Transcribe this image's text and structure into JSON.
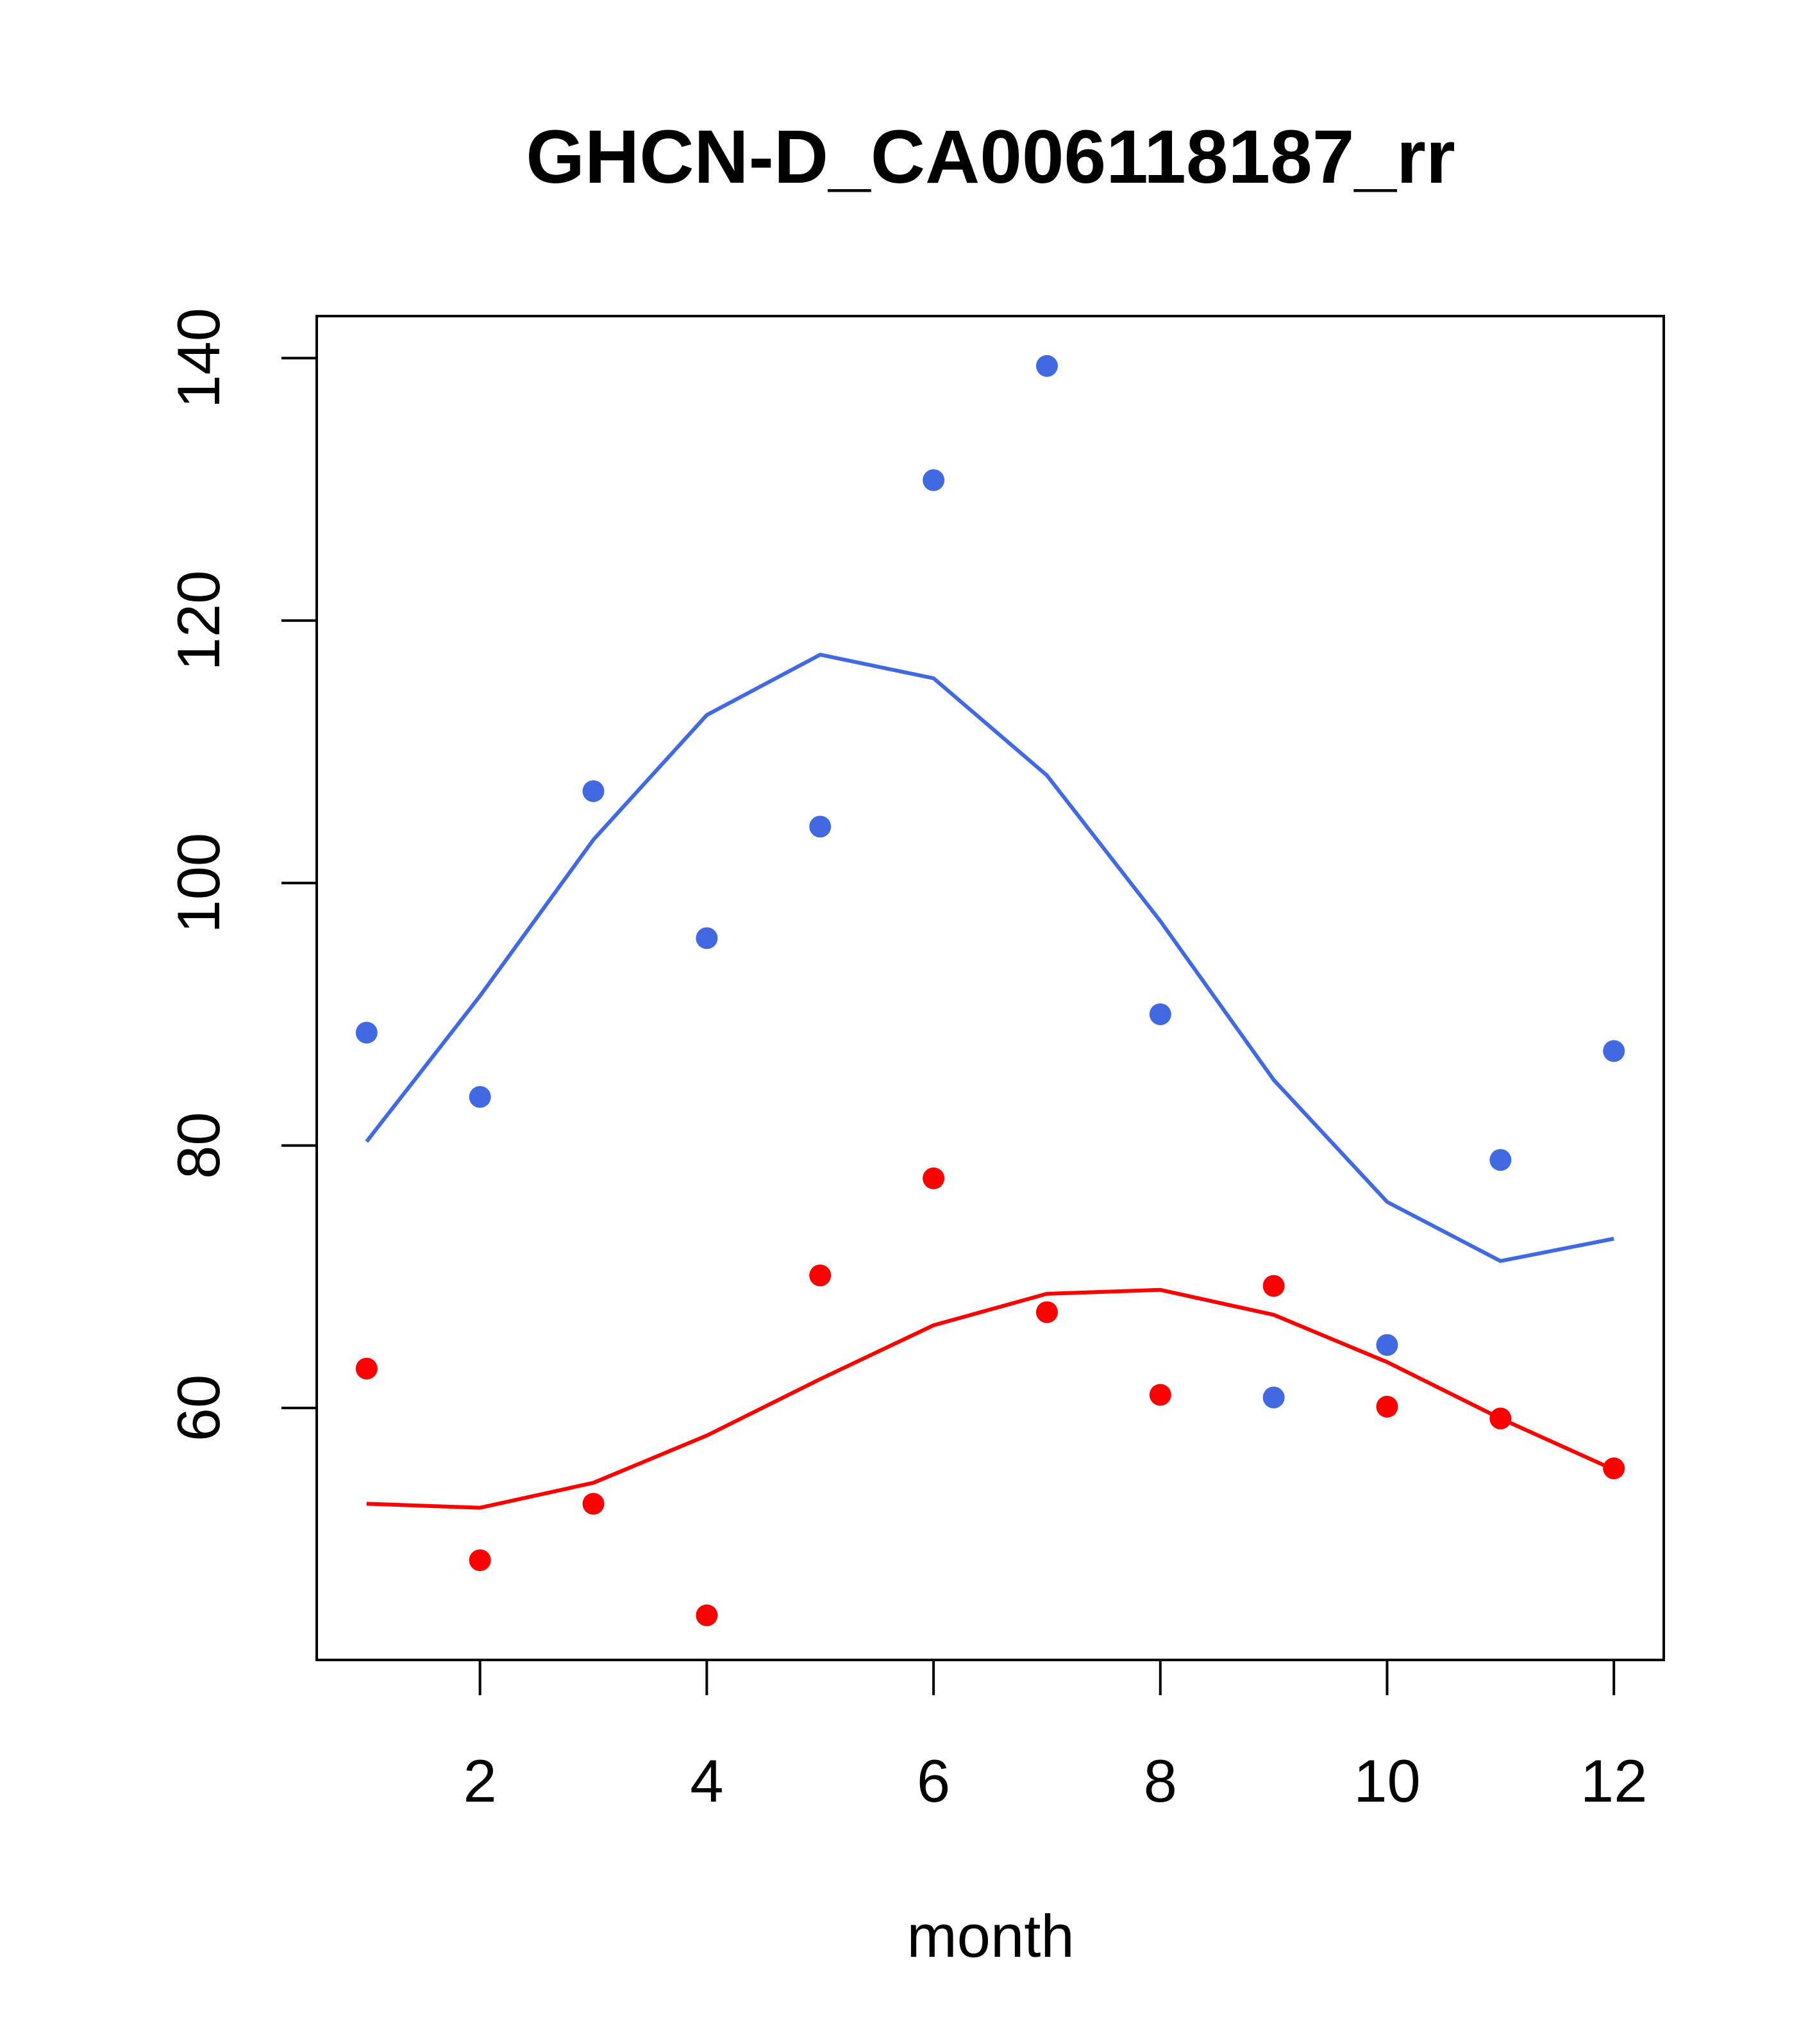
{
  "chart_data": {
    "type": "scatter",
    "title": "GHCN-D_CA006118187_rr",
    "xlabel": "month",
    "ylabel": "",
    "xlim": [
      0.56,
      12.44
    ],
    "ylim": [
      40.8,
      143.2
    ],
    "x_ticks": [
      2,
      4,
      6,
      8,
      10,
      12
    ],
    "y_ticks": [
      60,
      80,
      100,
      120,
      140
    ],
    "grid": false,
    "legend": "none",
    "series": [
      {
        "color": "#4169E1",
        "x": [
          1,
          2,
          3,
          4,
          5,
          6,
          7,
          8,
          9,
          10,
          11,
          12
        ],
        "points": [
          88.6,
          83.7,
          107.0,
          95.8,
          104.3,
          130.7,
          139.4,
          90.0,
          60.8,
          64.8,
          78.9,
          87.2
        ],
        "line": [
          80.3,
          91.4,
          103.3,
          112.8,
          117.4,
          115.6,
          108.2,
          97.1,
          85.0,
          75.7,
          71.2,
          72.9
        ]
      },
      {
        "color": "#FF0000",
        "x": [
          1,
          2,
          3,
          4,
          5,
          6,
          7,
          8,
          9,
          10,
          11,
          12
        ],
        "points": [
          63.0,
          48.4,
          52.7,
          44.2,
          70.1,
          77.5,
          67.3,
          61.0,
          69.3,
          60.1,
          59.2,
          55.4
        ],
        "line": [
          52.7,
          52.4,
          54.3,
          57.9,
          62.2,
          66.3,
          68.7,
          69.0,
          67.1,
          63.5,
          59.2,
          55.3
        ]
      }
    ]
  }
}
